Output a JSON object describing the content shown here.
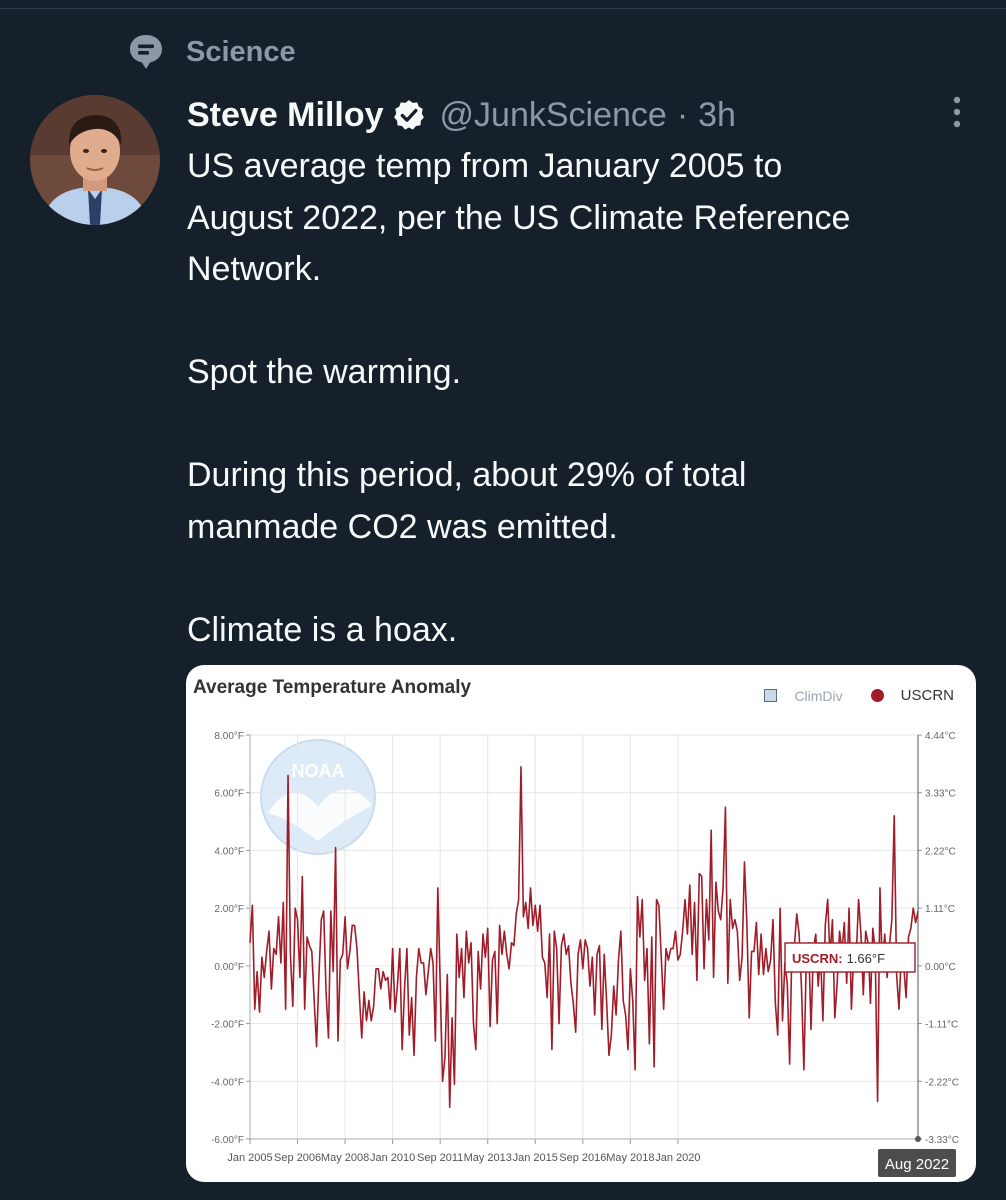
{
  "context": {
    "icon": "topic-bubble-icon",
    "label": "Science"
  },
  "tweet": {
    "author_name": "Steve Milloy",
    "handle": "@JunkScience",
    "separator": "·",
    "time": "3h",
    "verified_icon": "verified-badge-icon",
    "more_icon": "more-vertical-icon",
    "text": {
      "line1": "US average temp from January 2005 to",
      "line2": "August 2022, per the US Climate Reference",
      "line3": "Network.",
      "line4": "Spot the warming.",
      "line5": "During this period, about 29% of total",
      "line6": "manmade CO2 was emitted.",
      "line7": "Climate is a hoax."
    }
  },
  "chart_data": {
    "type": "line",
    "title": "Average Temperature Anomaly",
    "legend": [
      {
        "name": "ClimDiv",
        "marker": "square",
        "color": "#c9d9ea",
        "enabled": false
      },
      {
        "name": "USCRN",
        "marker": "circle",
        "color": "#a01c28",
        "enabled": true
      }
    ],
    "legend_position": "top-right",
    "watermark": "NOAA",
    "x_start": "Jan 2005",
    "x_end": "Aug 2022",
    "x_ticks": [
      "Jan 2005",
      "Sep 2006",
      "May 2008",
      "Jan 2010",
      "Sep 2011",
      "May 2013",
      "Jan 2015",
      "Sep 2016",
      "May 2018",
      "Jan 2020"
    ],
    "x_end_label": "Aug 2022",
    "ylim": [
      -6,
      8
    ],
    "y_ticks_left": [
      "-6.00°F",
      "-4.00°F",
      "-2.00°F",
      "0.00°F",
      "2.00°F",
      "4.00°F",
      "6.00°F",
      "8.00°F"
    ],
    "y_ticks_right": [
      "-3.33°C",
      "-2.22°C",
      "-1.11°C",
      "0.00°C",
      "1.11°C",
      "2.22°C",
      "3.33°C",
      "4.44°C"
    ],
    "grid": true,
    "tooltip": {
      "series": "USCRN:",
      "value": "1.66°F"
    },
    "series": [
      {
        "name": "USCRN",
        "color": "#a01c28",
        "values": [
          0.8,
          2.1,
          -1.5,
          -0.2,
          -1.6,
          0.3,
          -0.4,
          0.5,
          1.2,
          -0.8,
          0.6,
          0.4,
          1.7,
          0.1,
          2.2,
          -1.5,
          6.6,
          0.4,
          -1.4,
          2.0,
          1.6,
          -0.4,
          3.1,
          -1.5,
          1.0,
          0.7,
          0.5,
          -1.2,
          -2.8,
          -0.3,
          1.6,
          1.9,
          -0.9,
          -2.5,
          1.9,
          -0.2,
          4.1,
          -2.6,
          0.2,
          0.4,
          1.7,
          -0.1,
          0.5,
          1.4,
          1.4,
          0.6,
          -1.0,
          -2.5,
          -0.9,
          -1.9,
          -1.2,
          -1.9,
          -1.4,
          -0.1,
          -0.1,
          -0.8,
          -0.2,
          -0.5,
          -0.4,
          -1.5,
          0.6,
          -1.6,
          -0.7,
          0.6,
          -2.9,
          -0.8,
          0.6,
          -2.4,
          -1.1,
          -3.1,
          -0.4,
          0.6,
          0.1,
          0.1,
          -1.0,
          -0.2,
          0.6,
          0.1,
          -2.6,
          2.7,
          -0.6,
          -4.0,
          -3.2,
          -0.3,
          -4.9,
          -1.8,
          -4.1,
          1.1,
          -0.4,
          0.6,
          -1.1,
          1.2,
          0.1,
          0.8,
          -2.0,
          -2.9,
          0.5,
          -0.8,
          1.1,
          0.3,
          1.3,
          -2.1,
          0.2,
          0.5,
          -2.0,
          1.4,
          0.4,
          1.2,
          0.4,
          -0.1,
          0.8,
          0.7,
          1.8,
          2.3,
          6.9,
          1.7,
          2.2,
          1.3,
          2.7,
          1.4,
          2.1,
          1.2,
          2.1,
          0.3,
          0.1,
          -1.1,
          1.1,
          -2.9,
          1.2,
          0.6,
          -2.0,
          0.7,
          1.1,
          0.4,
          0.7,
          -0.6,
          -1.3,
          -2.3,
          0.4,
          0.9,
          -0.1,
          0.9,
          0.6,
          -0.7,
          0.3,
          -1.7,
          0.4,
          0.7,
          -2.2,
          0.4,
          -1.2,
          -3.1,
          -2.4,
          -0.7,
          -1.7,
          0.2,
          1.2,
          -1.2,
          -1.7,
          -2.9,
          -0.1,
          -1.2,
          -3.6,
          2.4,
          1.0,
          2.3,
          -0.5,
          0.6,
          -2.7,
          1.0,
          -3.5,
          2.3,
          2.1,
          0.3,
          -1.5,
          0.6,
          0.2,
          0.6,
          0.6,
          1.2,
          0.2,
          0.4,
          1.2,
          2.3,
          1.1,
          2.8,
          0.4,
          2.2,
          -0.5,
          3.2,
          3.1,
          -0.1,
          2.3,
          0.9,
          4.7,
          -0.4,
          2.9,
          1.9,
          1.6,
          2.7,
          5.5,
          -0.6,
          2.3,
          1.3,
          1.6,
          1.2,
          -0.5,
          0.3,
          3.6,
          1.5,
          -1.8,
          0.5,
          0.5,
          1.5,
          -0.3,
          1.1,
          -0.3,
          0.6,
          -0.2,
          0.2,
          1.6,
          -1.3,
          -2.4,
          2.0,
          -1.9,
          0.1,
          -0.6,
          -3.4,
          0.8,
          0.7,
          1.8,
          1.1,
          -0.8,
          -3.6,
          0.2,
          0.8,
          -2.2,
          0.6,
          1.1,
          -0.7,
          0.4,
          -1.9,
          1.4,
          2.3,
          0.3,
          1.6,
          -1.8,
          -0.6,
          1.2,
          0.5,
          1.5,
          -0.6,
          2.0,
          -1.5,
          0.5,
          0.3,
          2.3,
          1.1,
          -1.0,
          1.2,
          0.8,
          -1.3,
          1.3,
          0.5,
          -4.7,
          2.7,
          -0.1,
          1.1,
          -0.4,
          0.7,
          1.6,
          5.2,
          -0.3,
          -1.5,
          0.5,
          0.0,
          -1.1,
          1.0,
          1.3,
          2.0,
          1.5,
          1.9
        ]
      }
    ]
  }
}
